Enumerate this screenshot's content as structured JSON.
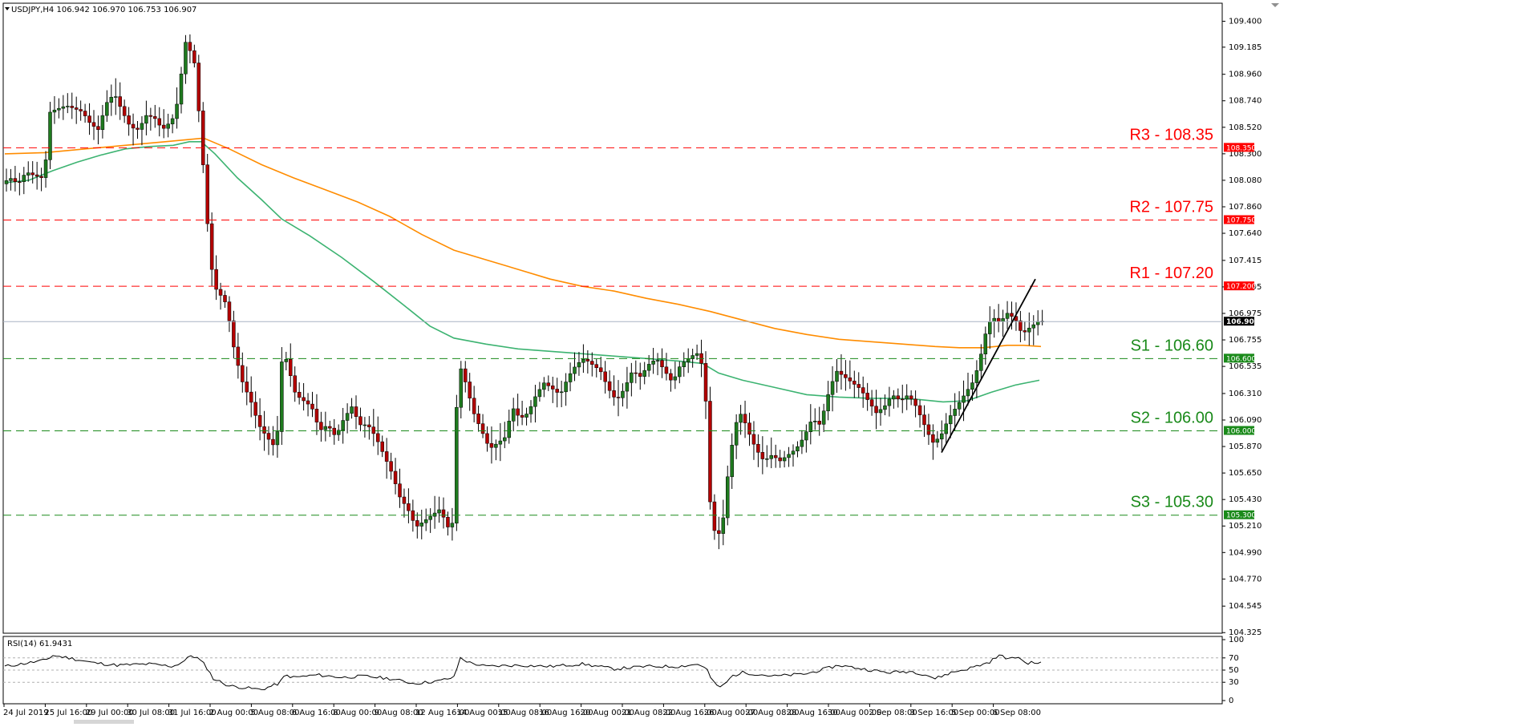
{
  "chart_data": {
    "type": "candlestick",
    "title": "USDJPY,H4  106.942 106.970 106.753 106.907",
    "symbol": "USDJPY",
    "timeframe": "H4",
    "ohlc_last": {
      "open": 106.942,
      "high": 106.97,
      "low": 106.753,
      "close": 106.907
    },
    "current_price": 106.907,
    "current_price_label": "106.907",
    "ylim": [
      104.32,
      109.55
    ],
    "yticks": [
      "109.400",
      "109.185",
      "108.960",
      "108.740",
      "108.520",
      "108.300",
      "108.080",
      "107.860",
      "107.640",
      "107.415",
      "107.195",
      "106.975",
      "106.755",
      "106.535",
      "106.310",
      "106.090",
      "105.870",
      "105.650",
      "105.430",
      "105.210",
      "104.990",
      "104.770",
      "104.545",
      "104.325"
    ],
    "xticks": [
      "24 Jul 2019",
      "25 Jul 16:00",
      "29 Jul 00:00",
      "30 Jul 08:00",
      "31 Jul 16:00",
      "2 Aug 00:00",
      "5 Aug 08:00",
      "6 Aug 16:00",
      "8 Aug 00:00",
      "9 Aug 08:00",
      "12 Aug 16:00",
      "14 Aug 00:00",
      "15 Aug 08:00",
      "16 Aug 16:00",
      "20 Aug 00:00",
      "21 Aug 08:00",
      "22 Aug 16:00",
      "26 Aug 00:00",
      "27 Aug 08:00",
      "28 Aug 16:00",
      "30 Aug 00:00",
      "2 Sep 08:00",
      "3 Sep 16:00",
      "5 Sep 00:00",
      "6 Sep 08:00"
    ],
    "levels": [
      {
        "label": "R3 - 108.35",
        "value": 108.35,
        "badge": "108.350",
        "color": "#ff0000",
        "type": "resistance"
      },
      {
        "label": "R2 - 107.75",
        "value": 107.75,
        "badge": "107.750",
        "color": "#ff0000",
        "type": "resistance"
      },
      {
        "label": "R1 - 107.20",
        "value": 107.2,
        "badge": "107.200",
        "color": "#ff0000",
        "type": "resistance"
      },
      {
        "label": "S1 - 106.60",
        "value": 106.6,
        "badge": "106.600",
        "color": "#1a8a1a",
        "type": "support"
      },
      {
        "label": "S2 - 106.00",
        "value": 106.0,
        "badge": "106.000",
        "color": "#1a8a1a",
        "type": "support"
      },
      {
        "label": "S3 - 105.30",
        "value": 105.3,
        "badge": "105.300",
        "color": "#1a8a1a",
        "type": "support"
      }
    ],
    "ma_fast": {
      "color": "#3cb371",
      "points": [
        [
          0,
          108.06
        ],
        [
          30,
          108.08
        ],
        [
          60,
          108.16
        ],
        [
          90,
          108.23
        ],
        [
          120,
          108.29
        ],
        [
          150,
          108.34
        ],
        [
          180,
          108.36
        ],
        [
          210,
          108.37
        ],
        [
          230,
          108.4
        ],
        [
          245,
          108.4
        ],
        [
          262,
          108.3
        ],
        [
          290,
          108.1
        ],
        [
          320,
          107.92
        ],
        [
          345,
          107.76
        ],
        [
          380,
          107.62
        ],
        [
          420,
          107.44
        ],
        [
          460,
          107.24
        ],
        [
          500,
          107.03
        ],
        [
          530,
          106.87
        ],
        [
          560,
          106.77
        ],
        [
          600,
          106.72
        ],
        [
          640,
          106.68
        ],
        [
          680,
          106.66
        ],
        [
          720,
          106.64
        ],
        [
          760,
          106.62
        ],
        [
          800,
          106.6
        ],
        [
          840,
          106.58
        ],
        [
          870,
          106.56
        ],
        [
          890,
          106.48
        ],
        [
          920,
          106.42
        ],
        [
          960,
          106.36
        ],
        [
          1000,
          106.3
        ],
        [
          1040,
          106.28
        ],
        [
          1080,
          106.27
        ],
        [
          1110,
          106.27
        ],
        [
          1140,
          106.26
        ],
        [
          1170,
          106.24
        ],
        [
          1200,
          106.25
        ],
        [
          1230,
          106.32
        ],
        [
          1260,
          106.38
        ],
        [
          1290,
          106.42
        ]
      ]
    },
    "ma_slow": {
      "color": "#ff8c00",
      "points": [
        [
          0,
          108.3
        ],
        [
          50,
          108.31
        ],
        [
          100,
          108.34
        ],
        [
          150,
          108.37
        ],
        [
          200,
          108.4
        ],
        [
          248,
          108.43
        ],
        [
          280,
          108.34
        ],
        [
          320,
          108.21
        ],
        [
          360,
          108.1
        ],
        [
          400,
          108.0
        ],
        [
          440,
          107.9
        ],
        [
          480,
          107.78
        ],
        [
          520,
          107.63
        ],
        [
          560,
          107.5
        ],
        [
          600,
          107.42
        ],
        [
          640,
          107.34
        ],
        [
          680,
          107.26
        ],
        [
          720,
          107.2
        ],
        [
          760,
          107.16
        ],
        [
          800,
          107.1
        ],
        [
          840,
          107.05
        ],
        [
          880,
          106.99
        ],
        [
          920,
          106.92
        ],
        [
          960,
          106.85
        ],
        [
          1000,
          106.8
        ],
        [
          1040,
          106.76
        ],
        [
          1080,
          106.74
        ],
        [
          1120,
          106.72
        ],
        [
          1160,
          106.7
        ],
        [
          1190,
          106.69
        ],
        [
          1220,
          106.69
        ],
        [
          1250,
          106.71
        ],
        [
          1270,
          106.71
        ],
        [
          1292,
          106.7
        ]
      ]
    },
    "trendline": {
      "from": [
        1168,
        105.82
      ],
      "to": [
        1285,
        107.26
      ],
      "color": "#000000"
    },
    "candles_anchor": [
      [
        0,
        108.05
      ],
      [
        10,
        108.1
      ],
      [
        20,
        108.05
      ],
      [
        30,
        108.15
      ],
      [
        40,
        108.12
      ],
      [
        50,
        108.1
      ],
      [
        56,
        108.3
      ],
      [
        60,
        108.65
      ],
      [
        80,
        108.7
      ],
      [
        100,
        108.65
      ],
      [
        110,
        108.55
      ],
      [
        120,
        108.5
      ],
      [
        130,
        108.72
      ],
      [
        140,
        108.8
      ],
      [
        150,
        108.65
      ],
      [
        160,
        108.52
      ],
      [
        170,
        108.5
      ],
      [
        180,
        108.62
      ],
      [
        190,
        108.6
      ],
      [
        200,
        108.5
      ],
      [
        212,
        108.58
      ],
      [
        222,
        108.8
      ],
      [
        226,
        109.25
      ],
      [
        232,
        109.2
      ],
      [
        240,
        109.05
      ],
      [
        246,
        108.6
      ],
      [
        252,
        108.1
      ],
      [
        258,
        107.55
      ],
      [
        264,
        107.2
      ],
      [
        270,
        107.15
      ],
      [
        280,
        107.05
      ],
      [
        290,
        106.65
      ],
      [
        300,
        106.4
      ],
      [
        310,
        106.25
      ],
      [
        320,
        106.05
      ],
      [
        330,
        105.95
      ],
      [
        342,
        105.85
      ],
      [
        350,
        106.7
      ],
      [
        358,
        106.5
      ],
      [
        366,
        106.3
      ],
      [
        376,
        106.25
      ],
      [
        386,
        106.2
      ],
      [
        396,
        106.0
      ],
      [
        406,
        106.05
      ],
      [
        416,
        105.95
      ],
      [
        426,
        106.1
      ],
      [
        436,
        106.2
      ],
      [
        446,
        106.05
      ],
      [
        456,
        106.05
      ],
      [
        466,
        105.95
      ],
      [
        476,
        105.8
      ],
      [
        486,
        105.65
      ],
      [
        496,
        105.45
      ],
      [
        506,
        105.35
      ],
      [
        516,
        105.2
      ],
      [
        526,
        105.25
      ],
      [
        536,
        105.3
      ],
      [
        546,
        105.35
      ],
      [
        556,
        105.2
      ],
      [
        564,
        105.25
      ],
      [
        568,
        106.6
      ],
      [
        578,
        106.4
      ],
      [
        588,
        106.15
      ],
      [
        598,
        106.0
      ],
      [
        608,
        105.85
      ],
      [
        618,
        105.9
      ],
      [
        628,
        105.95
      ],
      [
        636,
        106.2
      ],
      [
        646,
        106.1
      ],
      [
        656,
        106.15
      ],
      [
        666,
        106.3
      ],
      [
        676,
        106.4
      ],
      [
        686,
        106.35
      ],
      [
        696,
        106.3
      ],
      [
        706,
        106.45
      ],
      [
        716,
        106.55
      ],
      [
        726,
        106.6
      ],
      [
        736,
        106.55
      ],
      [
        746,
        106.5
      ],
      [
        756,
        106.35
      ],
      [
        766,
        106.25
      ],
      [
        776,
        106.35
      ],
      [
        786,
        106.5
      ],
      [
        796,
        106.45
      ],
      [
        806,
        106.55
      ],
      [
        816,
        106.6
      ],
      [
        826,
        106.5
      ],
      [
        836,
        106.4
      ],
      [
        846,
        106.55
      ],
      [
        856,
        106.6
      ],
      [
        866,
        106.65
      ],
      [
        876,
        106.5
      ],
      [
        882,
        105.45
      ],
      [
        890,
        105.1
      ],
      [
        898,
        105.2
      ],
      [
        906,
        105.7
      ],
      [
        914,
        106.05
      ],
      [
        922,
        106.15
      ],
      [
        930,
        106.0
      ],
      [
        940,
        105.85
      ],
      [
        950,
        105.75
      ],
      [
        960,
        105.8
      ],
      [
        970,
        105.75
      ],
      [
        980,
        105.8
      ],
      [
        990,
        105.85
      ],
      [
        1000,
        105.95
      ],
      [
        1010,
        106.1
      ],
      [
        1020,
        106.05
      ],
      [
        1030,
        106.3
      ],
      [
        1040,
        106.5
      ],
      [
        1050,
        106.45
      ],
      [
        1060,
        106.4
      ],
      [
        1070,
        106.35
      ],
      [
        1080,
        106.25
      ],
      [
        1090,
        106.15
      ],
      [
        1100,
        106.2
      ],
      [
        1110,
        106.3
      ],
      [
        1120,
        106.25
      ],
      [
        1130,
        106.3
      ],
      [
        1140,
        106.2
      ],
      [
        1150,
        106.05
      ],
      [
        1160,
        105.9
      ],
      [
        1170,
        105.95
      ],
      [
        1180,
        106.1
      ],
      [
        1190,
        106.2
      ],
      [
        1200,
        106.3
      ],
      [
        1210,
        106.4
      ],
      [
        1218,
        106.55
      ],
      [
        1226,
        106.8
      ],
      [
        1234,
        106.95
      ],
      [
        1244,
        106.9
      ],
      [
        1254,
        106.98
      ],
      [
        1264,
        106.92
      ],
      [
        1272,
        106.8
      ],
      [
        1280,
        106.85
      ],
      [
        1292,
        106.91
      ]
    ]
  },
  "rsi": {
    "label": "RSI(14) 61.9431",
    "period": 14,
    "value": 61.9431,
    "ylim": [
      0,
      100
    ],
    "yticks": [
      "100",
      "70",
      "50",
      "30",
      "0"
    ],
    "levels": [
      70,
      50,
      30
    ],
    "anchor": [
      [
        0,
        56
      ],
      [
        20,
        60
      ],
      [
        50,
        66
      ],
      [
        60,
        74
      ],
      [
        80,
        70
      ],
      [
        110,
        62
      ],
      [
        140,
        58
      ],
      [
        180,
        60
      ],
      [
        210,
        56
      ],
      [
        225,
        66
      ],
      [
        232,
        74
      ],
      [
        240,
        70
      ],
      [
        250,
        58
      ],
      [
        260,
        36
      ],
      [
        280,
        24
      ],
      [
        320,
        18
      ],
      [
        342,
        28
      ],
      [
        350,
        42
      ],
      [
        360,
        38
      ],
      [
        390,
        42
      ],
      [
        420,
        38
      ],
      [
        450,
        40
      ],
      [
        480,
        36
      ],
      [
        510,
        28
      ],
      [
        540,
        32
      ],
      [
        560,
        38
      ],
      [
        568,
        70
      ],
      [
        580,
        62
      ],
      [
        600,
        56
      ],
      [
        640,
        58
      ],
      [
        680,
        56
      ],
      [
        720,
        60
      ],
      [
        760,
        52
      ],
      [
        800,
        56
      ],
      [
        840,
        56
      ],
      [
        866,
        60
      ],
      [
        876,
        50
      ],
      [
        882,
        32
      ],
      [
        890,
        22
      ],
      [
        898,
        26
      ],
      [
        906,
        40
      ],
      [
        920,
        46
      ],
      [
        960,
        40
      ],
      [
        1000,
        44
      ],
      [
        1040,
        58
      ],
      [
        1060,
        54
      ],
      [
        1100,
        46
      ],
      [
        1130,
        48
      ],
      [
        1150,
        42
      ],
      [
        1160,
        36
      ],
      [
        1180,
        46
      ],
      [
        1200,
        52
      ],
      [
        1226,
        62
      ],
      [
        1240,
        74
      ],
      [
        1254,
        68
      ],
      [
        1264,
        72
      ],
      [
        1272,
        62
      ],
      [
        1292,
        62
      ]
    ]
  }
}
